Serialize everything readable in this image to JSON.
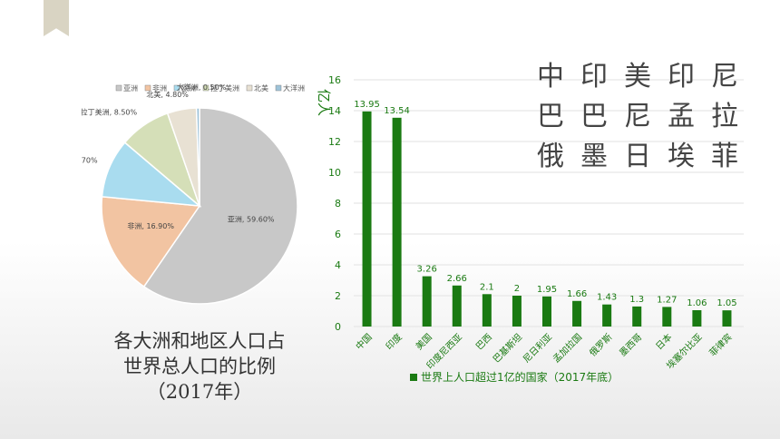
{
  "chart_data": [
    {
      "type": "pie",
      "legend": [
        "亚洲",
        "非洲",
        "欧洲",
        "拉丁美洲",
        "北美",
        "大洋洲"
      ],
      "slices": [
        {
          "label": "亚洲",
          "value": 59.6,
          "text": "亚洲, 59.60%",
          "color": "#c8c8c8"
        },
        {
          "label": "非洲",
          "value": 16.9,
          "text": "非洲, 16.90%",
          "color": "#f2c4a2"
        },
        {
          "label": "欧洲",
          "value": 9.7,
          "text": "欧洲, 9.70%",
          "color": "#a9dcef"
        },
        {
          "label": "拉丁美洲",
          "value": 8.5,
          "text": "拉丁美洲, 8.50%",
          "color": "#d5dfb8"
        },
        {
          "label": "北美",
          "value": 4.8,
          "text": "北美, 4.80%",
          "color": "#e8e1d3"
        },
        {
          "label": "大洋洲",
          "value": 0.5,
          "text": "大洋洲, 0.50%",
          "color": "#9ec3d9"
        }
      ],
      "caption": [
        "各大洲和地区人口占",
        "世界总人口的比例",
        "（2017年）"
      ]
    },
    {
      "type": "bar",
      "ylabel": "亿人",
      "ylim": [
        0,
        16
      ],
      "yticks": [
        0,
        2,
        4,
        6,
        8,
        10,
        12,
        14,
        16
      ],
      "categories": [
        "中国",
        "印度",
        "美国",
        "印度尼西亚",
        "巴西",
        "巴基斯坦",
        "尼日利亚",
        "孟加拉国",
        "俄罗斯",
        "墨西哥",
        "日本",
        "埃塞尔比亚",
        "菲律宾"
      ],
      "values": [
        13.95,
        13.54,
        3.26,
        2.66,
        2.1,
        2,
        1.95,
        1.66,
        1.43,
        1.3,
        1.27,
        1.06,
        1.05
      ],
      "value_labels": [
        "13.95",
        "13.54",
        "3.26",
        "2.66",
        "2.1",
        "2",
        "1.95",
        "1.66",
        "1.43",
        "1.3",
        "1.27",
        "1.06",
        "1.05"
      ],
      "legend": "世界上人口超过1亿的国家（2017年底）",
      "color": "#1a7a12",
      "grid": true
    }
  ],
  "country_grid": [
    "中",
    "印",
    "美",
    "印",
    "尼",
    "巴",
    "巴",
    "尼",
    "孟",
    "拉",
    "俄",
    "墨",
    "日",
    "埃",
    "菲"
  ]
}
